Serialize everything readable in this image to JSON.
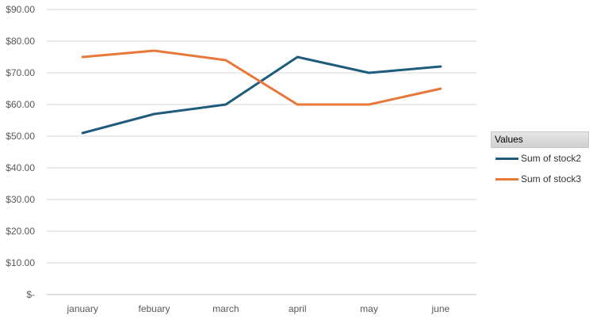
{
  "chart_data": {
    "type": "line",
    "title": "",
    "xlabel": "",
    "ylabel": "",
    "categories": [
      "january",
      "febuary",
      "march",
      "april",
      "may",
      "june"
    ],
    "ylim": [
      0,
      90
    ],
    "ytick_values": [
      0,
      10,
      20,
      30,
      40,
      50,
      60,
      70,
      80,
      90
    ],
    "ytick_labels": [
      "$-",
      "$10.00",
      "$20.00",
      "$30.00",
      "$40.00",
      "$50.00",
      "$60.00",
      "$70.00",
      "$80.00",
      "$90.00"
    ],
    "grid": true,
    "legend_position": "right",
    "series": [
      {
        "name": "Sum of stock2",
        "color": "#1f5b7a",
        "values": [
          51,
          57,
          60,
          75,
          70,
          72
        ]
      },
      {
        "name": "Sum of stock3",
        "color": "#e8773a",
        "values": [
          75,
          77,
          74,
          60,
          60,
          65
        ]
      }
    ]
  },
  "legend": {
    "title": "Values",
    "items": [
      {
        "label": "Sum of stock2",
        "color": "#1f5b7a"
      },
      {
        "label": "Sum of stock3",
        "color": "#e8773a"
      }
    ]
  }
}
